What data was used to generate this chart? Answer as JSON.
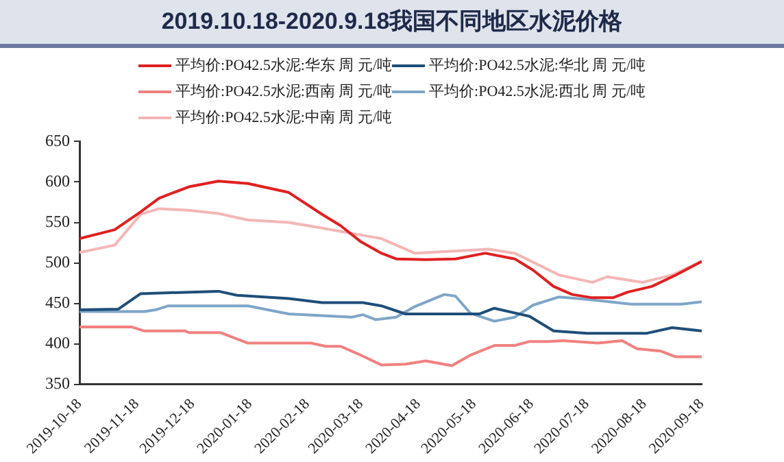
{
  "chart_data": {
    "type": "line",
    "title": "2019.10.18-2020.9.18我国不同地区水泥价格",
    "xlim": [
      "2019-10-18",
      "2020-09-18"
    ],
    "xticks": [
      "2019-10-18",
      "2019-11-18",
      "2019-12-18",
      "2020-01-18",
      "2020-02-18",
      "2020-03-18",
      "2020-04-18",
      "2020-05-18",
      "2020-06-18",
      "2020-07-18",
      "2020-08-18",
      "2020-09-18"
    ],
    "ylim": [
      350,
      650
    ],
    "yticks": [
      350,
      400,
      450,
      500,
      550,
      600,
      650
    ],
    "grid": false,
    "legend": "top",
    "marker": "none",
    "line_style": "solid",
    "series": [
      {
        "name": "平均价:PO42.5水泥:华东 周 元/吨",
        "color": "#e02020",
        "x": [
          "2019-10-18",
          "2019-11-06",
          "2019-11-20",
          "2019-11-30",
          "2019-12-16",
          "2020-01-01",
          "2020-01-17",
          "2020-02-08",
          "2020-02-26",
          "2020-03-07",
          "2020-03-18",
          "2020-03-29",
          "2020-04-06",
          "2020-04-22",
          "2020-05-08",
          "2020-05-24",
          "2020-06-09",
          "2020-06-19",
          "2020-06-30",
          "2020-07-10",
          "2020-07-21",
          "2020-08-01",
          "2020-08-09",
          "2020-08-22",
          "2020-09-04",
          "2020-09-18"
        ],
        "values": [
          530,
          541,
          563,
          580,
          594,
          601,
          598,
          587,
          560,
          546,
          526,
          512,
          505,
          504,
          505,
          512,
          505,
          491,
          471,
          461,
          457,
          457,
          464,
          471,
          485,
          502
        ]
      },
      {
        "name": "平均价:PO42.5水泥:华北 周 元/吨",
        "color": "#1f4e79",
        "x": [
          "2019-10-18",
          "2019-11-08",
          "2019-11-20",
          "2020-01-01",
          "2020-01-11",
          "2020-02-08",
          "2020-02-26",
          "2020-03-19",
          "2020-03-29",
          "2020-04-11",
          "2020-05-21",
          "2020-05-29",
          "2020-06-17",
          "2020-06-30",
          "2020-07-18",
          "2020-08-19",
          "2020-09-02",
          "2020-09-18"
        ],
        "values": [
          442,
          443,
          462,
          465,
          460,
          456,
          451,
          451,
          447,
          437,
          437,
          444,
          434,
          416,
          413,
          413,
          420,
          416
        ]
      },
      {
        "name": "平均价:PO42.5水泥:西南 周 元/吨",
        "color": "#f08080",
        "x": [
          "2019-10-18",
          "2019-11-15",
          "2019-11-22",
          "2019-12-14",
          "2019-12-16",
          "2020-01-02",
          "2020-01-17",
          "2020-02-20",
          "2020-02-28",
          "2020-03-07",
          "2020-03-18",
          "2020-03-29",
          "2020-04-11",
          "2020-04-22",
          "2020-05-06",
          "2020-05-16",
          "2020-05-29",
          "2020-06-09",
          "2020-06-17",
          "2020-06-27",
          "2020-07-05",
          "2020-07-24",
          "2020-08-06",
          "2020-08-14",
          "2020-08-27",
          "2020-09-04",
          "2020-09-18"
        ],
        "values": [
          421,
          421,
          416,
          416,
          414,
          414,
          401,
          401,
          397,
          397,
          386,
          374,
          375,
          379,
          373,
          386,
          398,
          398,
          403,
          403,
          404,
          401,
          404,
          394,
          391,
          384,
          384
        ]
      },
      {
        "name": "平均价:PO42.5水泥:西北 周 元/吨",
        "color": "#7ea6c8",
        "x": [
          "2019-10-18",
          "2019-11-22",
          "2019-11-28",
          "2019-12-05",
          "2020-01-17",
          "2020-02-08",
          "2020-03-13",
          "2020-03-19",
          "2020-03-26",
          "2020-04-06",
          "2020-04-16",
          "2020-05-02",
          "2020-05-08",
          "2020-05-16",
          "2020-05-29",
          "2020-06-09",
          "2020-06-19",
          "2020-07-03",
          "2020-07-18",
          "2020-08-11",
          "2020-09-07",
          "2020-09-18"
        ],
        "values": [
          440,
          440,
          442,
          447,
          447,
          437,
          433,
          436,
          430,
          433,
          446,
          461,
          459,
          438,
          428,
          433,
          448,
          458,
          455,
          449,
          449,
          452
        ]
      },
      {
        "name": "平均价:PO42.5水泥:中南 周 元/吨",
        "color": "#f4b6b6",
        "x": [
          "2019-10-18",
          "2019-11-06",
          "2019-11-20",
          "2019-11-30",
          "2019-12-16",
          "2020-01-01",
          "2020-01-17",
          "2020-02-08",
          "2020-02-26",
          "2020-03-29",
          "2020-04-16",
          "2020-05-26",
          "2020-06-09",
          "2020-07-03",
          "2020-07-21",
          "2020-07-29",
          "2020-08-17",
          "2020-09-02",
          "2020-09-18"
        ],
        "values": [
          513,
          522,
          560,
          567,
          565,
          561,
          553,
          550,
          543,
          530,
          512,
          517,
          512,
          485,
          476,
          483,
          476,
          485,
          502
        ]
      }
    ]
  }
}
